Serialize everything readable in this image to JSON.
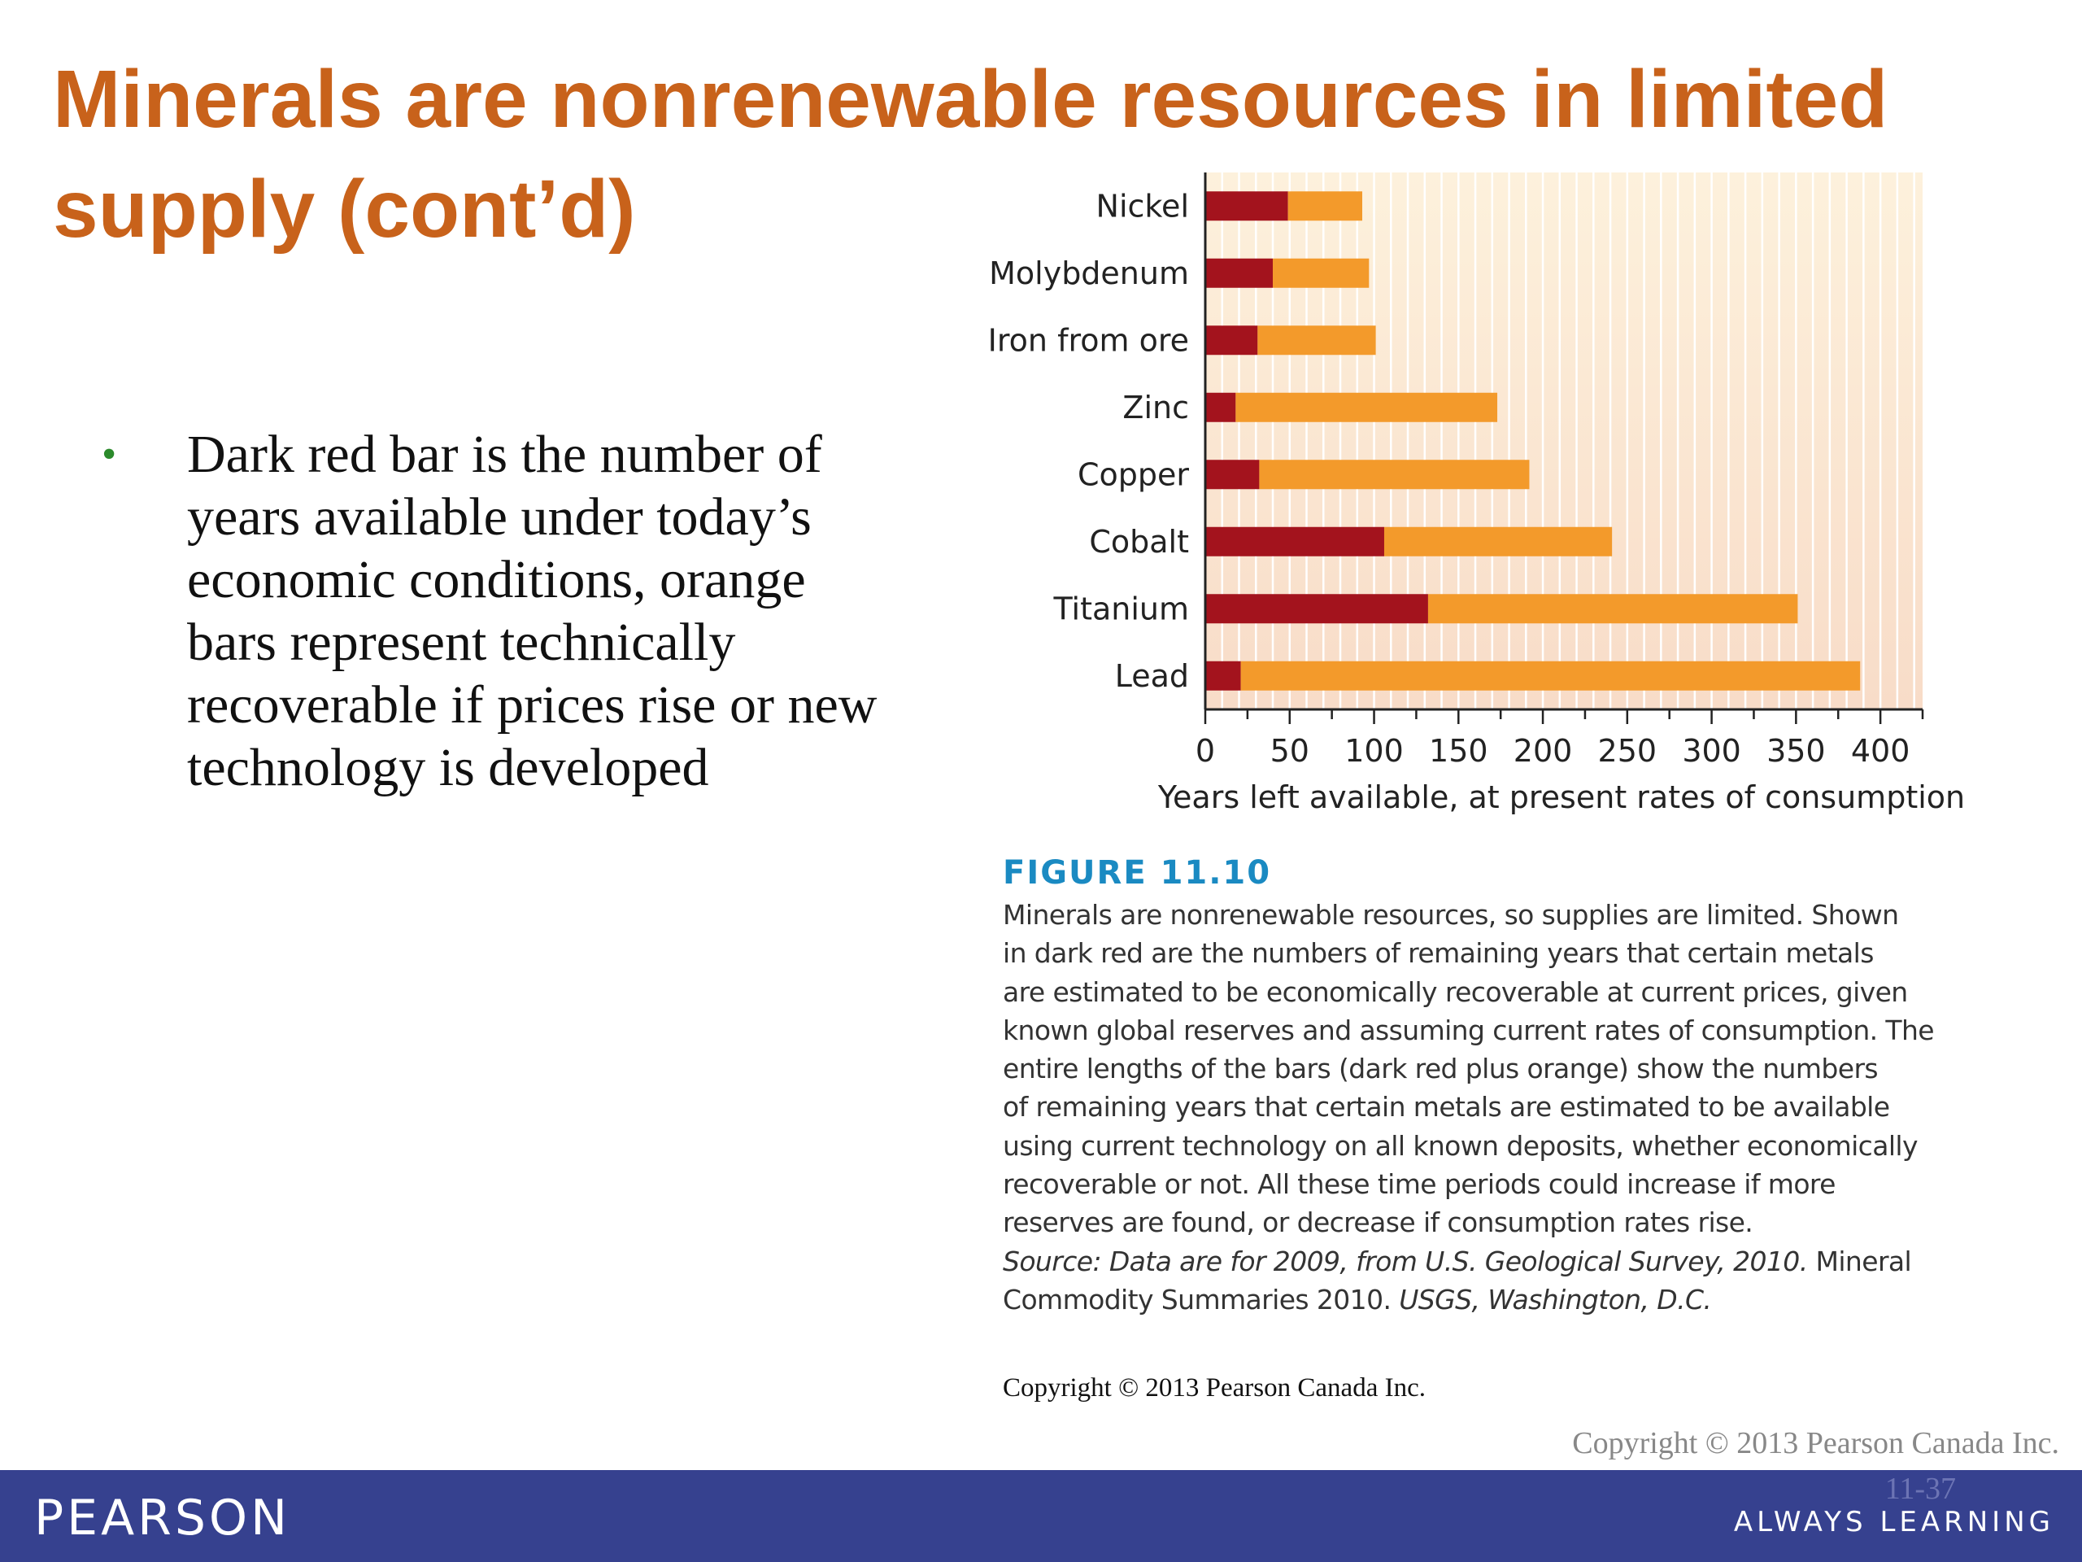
{
  "slide": {
    "title": "Minerals are nonrenewable resources in limited supply (cont’d)",
    "bullet": "Dark red bar is the number of years available under today’s economic conditions, orange bars represent technically recoverable if prices rise or new technology is developed",
    "bullet_color": "#2b8a2b",
    "title_color": "#c8621b"
  },
  "chart_data": {
    "type": "bar",
    "orientation": "horizontal",
    "stacked": true,
    "categories": [
      "Nickel",
      "Molybdenum",
      "Iron from ore",
      "Zinc",
      "Copper",
      "Cobalt",
      "Titanium",
      "Lead"
    ],
    "series": [
      {
        "color": "#a3131d",
        "values": [
          49,
          40,
          31,
          18,
          32,
          106,
          132,
          21
        ]
      },
      {
        "color": "#f39a2b",
        "values": [
          44,
          57,
          70,
          155,
          160,
          135,
          219,
          367
        ]
      }
    ],
    "totals": [
      93,
      97,
      101,
      173,
      192,
      241,
      351,
      388
    ],
    "xlabel": "Years left available, at present rates of consumption",
    "xticks": [
      0,
      50,
      100,
      150,
      200,
      250,
      300,
      350,
      400
    ],
    "xlim": [
      0,
      425
    ],
    "grid": true
  },
  "figure": {
    "label": "FIGURE 11.10",
    "caption_lines": [
      "Minerals are nonrenewable resources, so supplies are limited. Shown",
      "in dark red are the numbers of remaining years that certain metals",
      "are estimated to be economically recoverable at current prices, given",
      "known global reserves and assuming current rates of consumption. The",
      "entire lengths of the bars (dark red plus orange) show the numbers",
      "of remaining years that certain metals are estimated to be available",
      "using current technology on all known deposits, whether economically",
      "recoverable or not. All these time periods could increase if more",
      "reserves are found, or decrease if consumption rates rise."
    ],
    "source_italic_1": "Source: Data are for 2009, from U.S. Geological Survey, 2010.",
    "source_normal_1": " Mineral",
    "source_normal_2": "Commodity Summaries 2010.",
    "source_italic_2": " USGS, Washington, D.C.",
    "copyright": "Copyright © 2013 Pearson Canada Inc."
  },
  "footer": {
    "copyright": "Copyright © 2013 Pearson Canada Inc.",
    "slide_number": "11-37",
    "logo": "PEARSON",
    "slogan": "ALWAYS LEARNING",
    "bar_color": "#36418f"
  }
}
